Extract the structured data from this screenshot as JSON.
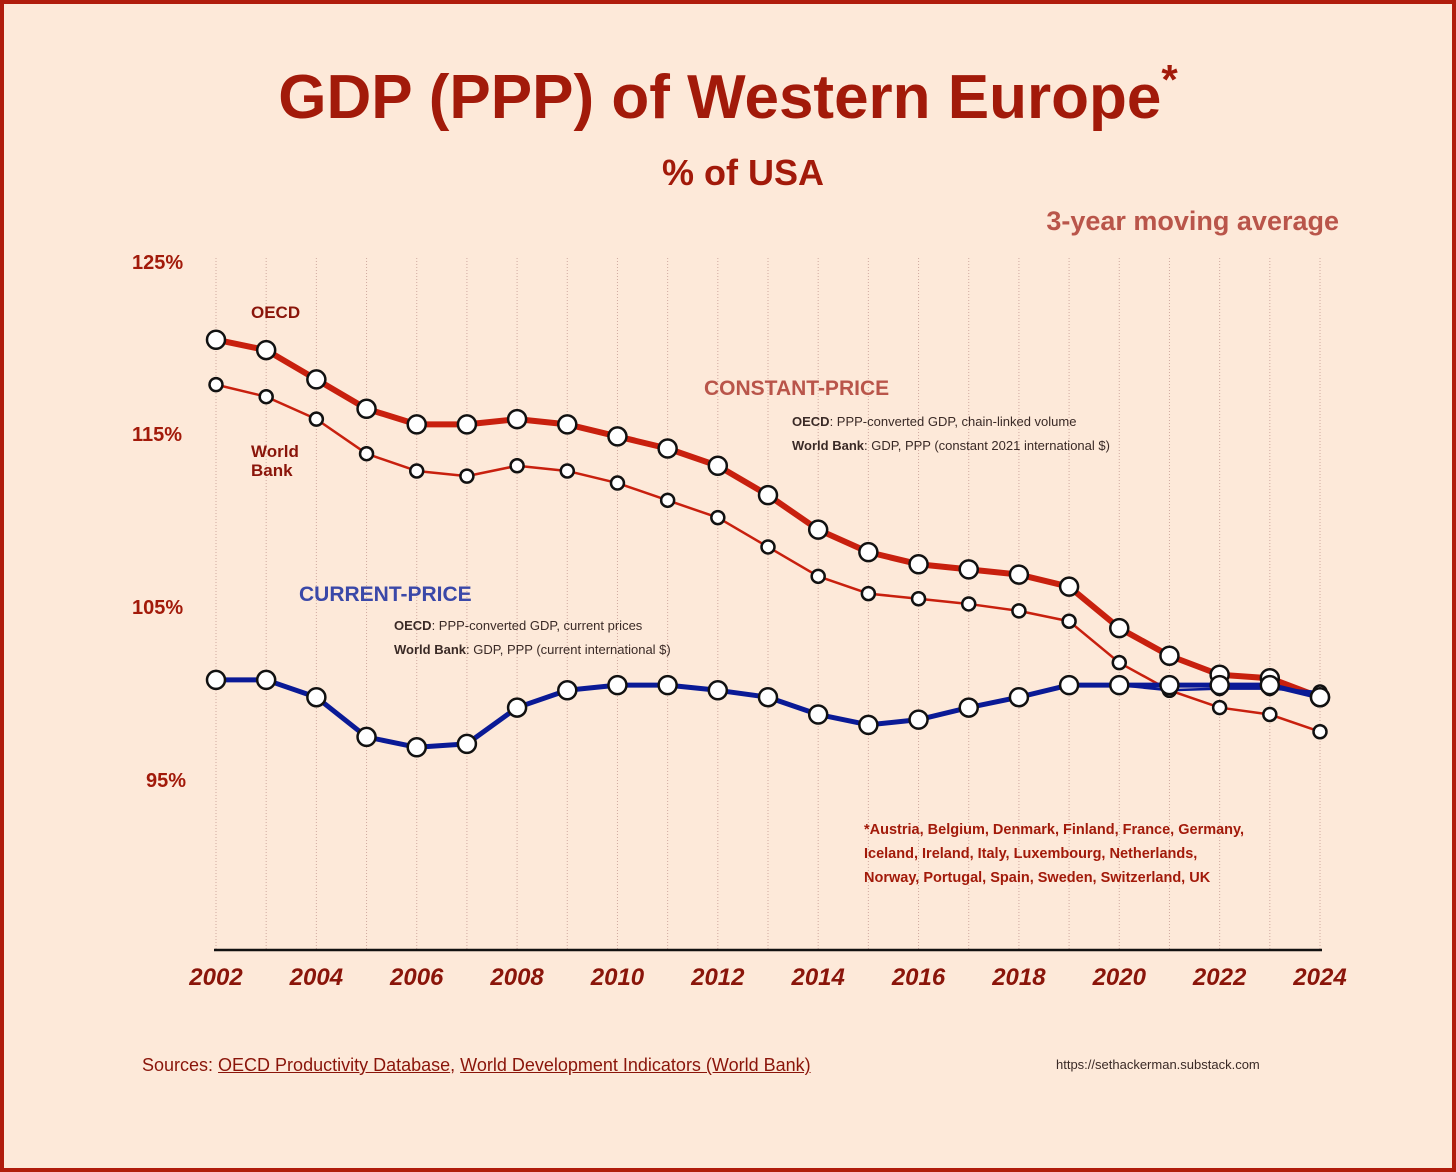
{
  "header": {
    "title": "GDP (PPP) of Western Europe",
    "title_mark": "*",
    "subtitle": "% of USA",
    "note": "3-year moving average"
  },
  "annotations": {
    "oecd_label": "OECD",
    "wb_label_1": "World",
    "wb_label_2": "Bank",
    "constant": {
      "heading": "CONSTANT-PRICE",
      "oecd_src": "OECD",
      "oecd_desc": ": PPP-converted GDP, chain-linked volume",
      "wb_src": "World Bank",
      "wb_desc": ": GDP, PPP (constant 2021 international $)"
    },
    "current": {
      "heading": "CURRENT-PRICE",
      "oecd_src": "OECD",
      "oecd_desc": ": PPP-converted GDP, current prices",
      "wb_src": "World Bank",
      "wb_desc": ": GDP, PPP (current international $)"
    },
    "countries": [
      "*Austria, Belgium, Denmark, Finland, France, Germany,",
      "Iceland, Ireland, Italy, Luxembourg, Netherlands,",
      "Norway, Portugal, Spain, Sweden, Switzerland, UK"
    ]
  },
  "footer": {
    "sources_prefix": "Sources: ",
    "source1": "OECD Productivity Database",
    "sep": ", ",
    "source2": "World Development Indicators (World Bank)",
    "url": "https://sethackerman.substack.com"
  },
  "colors": {
    "background": "#fde9d9",
    "accent": "#a21a0a",
    "constant": "#c8200e",
    "current": "#0a1a96"
  },
  "chart_data": {
    "type": "line",
    "title": "GDP (PPP) of Western Europe*",
    "subtitle": "% of USA",
    "x": [
      2002,
      2003,
      2004,
      2005,
      2006,
      2007,
      2008,
      2009,
      2010,
      2011,
      2012,
      2013,
      2014,
      2015,
      2016,
      2017,
      2018,
      2019,
      2020,
      2021,
      2022,
      2023,
      2024
    ],
    "xticks": [
      "2002",
      "2004",
      "2006",
      "2008",
      "2010",
      "2012",
      "2014",
      "2016",
      "2018",
      "2020",
      "2022",
      "2024"
    ],
    "yticks": [
      {
        "v": 125,
        "label": "125%"
      },
      {
        "v": 115,
        "label": "115%"
      },
      {
        "v": 105,
        "label": "105%"
      },
      {
        "v": 95,
        "label": "95%"
      }
    ],
    "ylim": [
      85,
      125
    ],
    "grid": "vertical",
    "series": [
      {
        "name": "OECD constant-price",
        "style": "thick-red",
        "values": [
          120.5,
          119.9,
          118.2,
          116.5,
          115.6,
          115.6,
          115.9,
          115.6,
          114.9,
          114.2,
          113.2,
          111.5,
          109.5,
          108.2,
          107.5,
          107.2,
          106.9,
          106.2,
          103.8,
          102.2,
          101.1,
          100.9,
          99.8
        ]
      },
      {
        "name": "World Bank constant-price",
        "style": "thin-red",
        "values": [
          117.9,
          117.2,
          115.9,
          113.9,
          112.9,
          112.6,
          113.2,
          112.9,
          112.2,
          111.2,
          110.2,
          108.5,
          106.8,
          105.8,
          105.5,
          105.2,
          104.8,
          104.2,
          101.8,
          100.2,
          99.2,
          98.8,
          97.8
        ]
      },
      {
        "name": "World Bank current-price",
        "style": "thin-blue",
        "values": [
          100.8,
          100.8,
          99.8,
          97.5,
          96.9,
          97.1,
          99.2,
          100.2,
          100.5,
          100.5,
          100.2,
          99.8,
          98.8,
          98.2,
          98.5,
          99.2,
          99.8,
          100.5,
          100.5,
          100.2,
          100.3,
          100.3,
          100.1
        ]
      },
      {
        "name": "OECD current-price",
        "style": "thick-blue",
        "values": [
          100.8,
          100.8,
          99.8,
          97.5,
          96.9,
          97.1,
          99.2,
          100.2,
          100.5,
          100.5,
          100.2,
          99.8,
          98.8,
          98.2,
          98.5,
          99.2,
          99.8,
          100.5,
          100.5,
          100.5,
          100.5,
          100.5,
          99.8
        ]
      }
    ]
  }
}
